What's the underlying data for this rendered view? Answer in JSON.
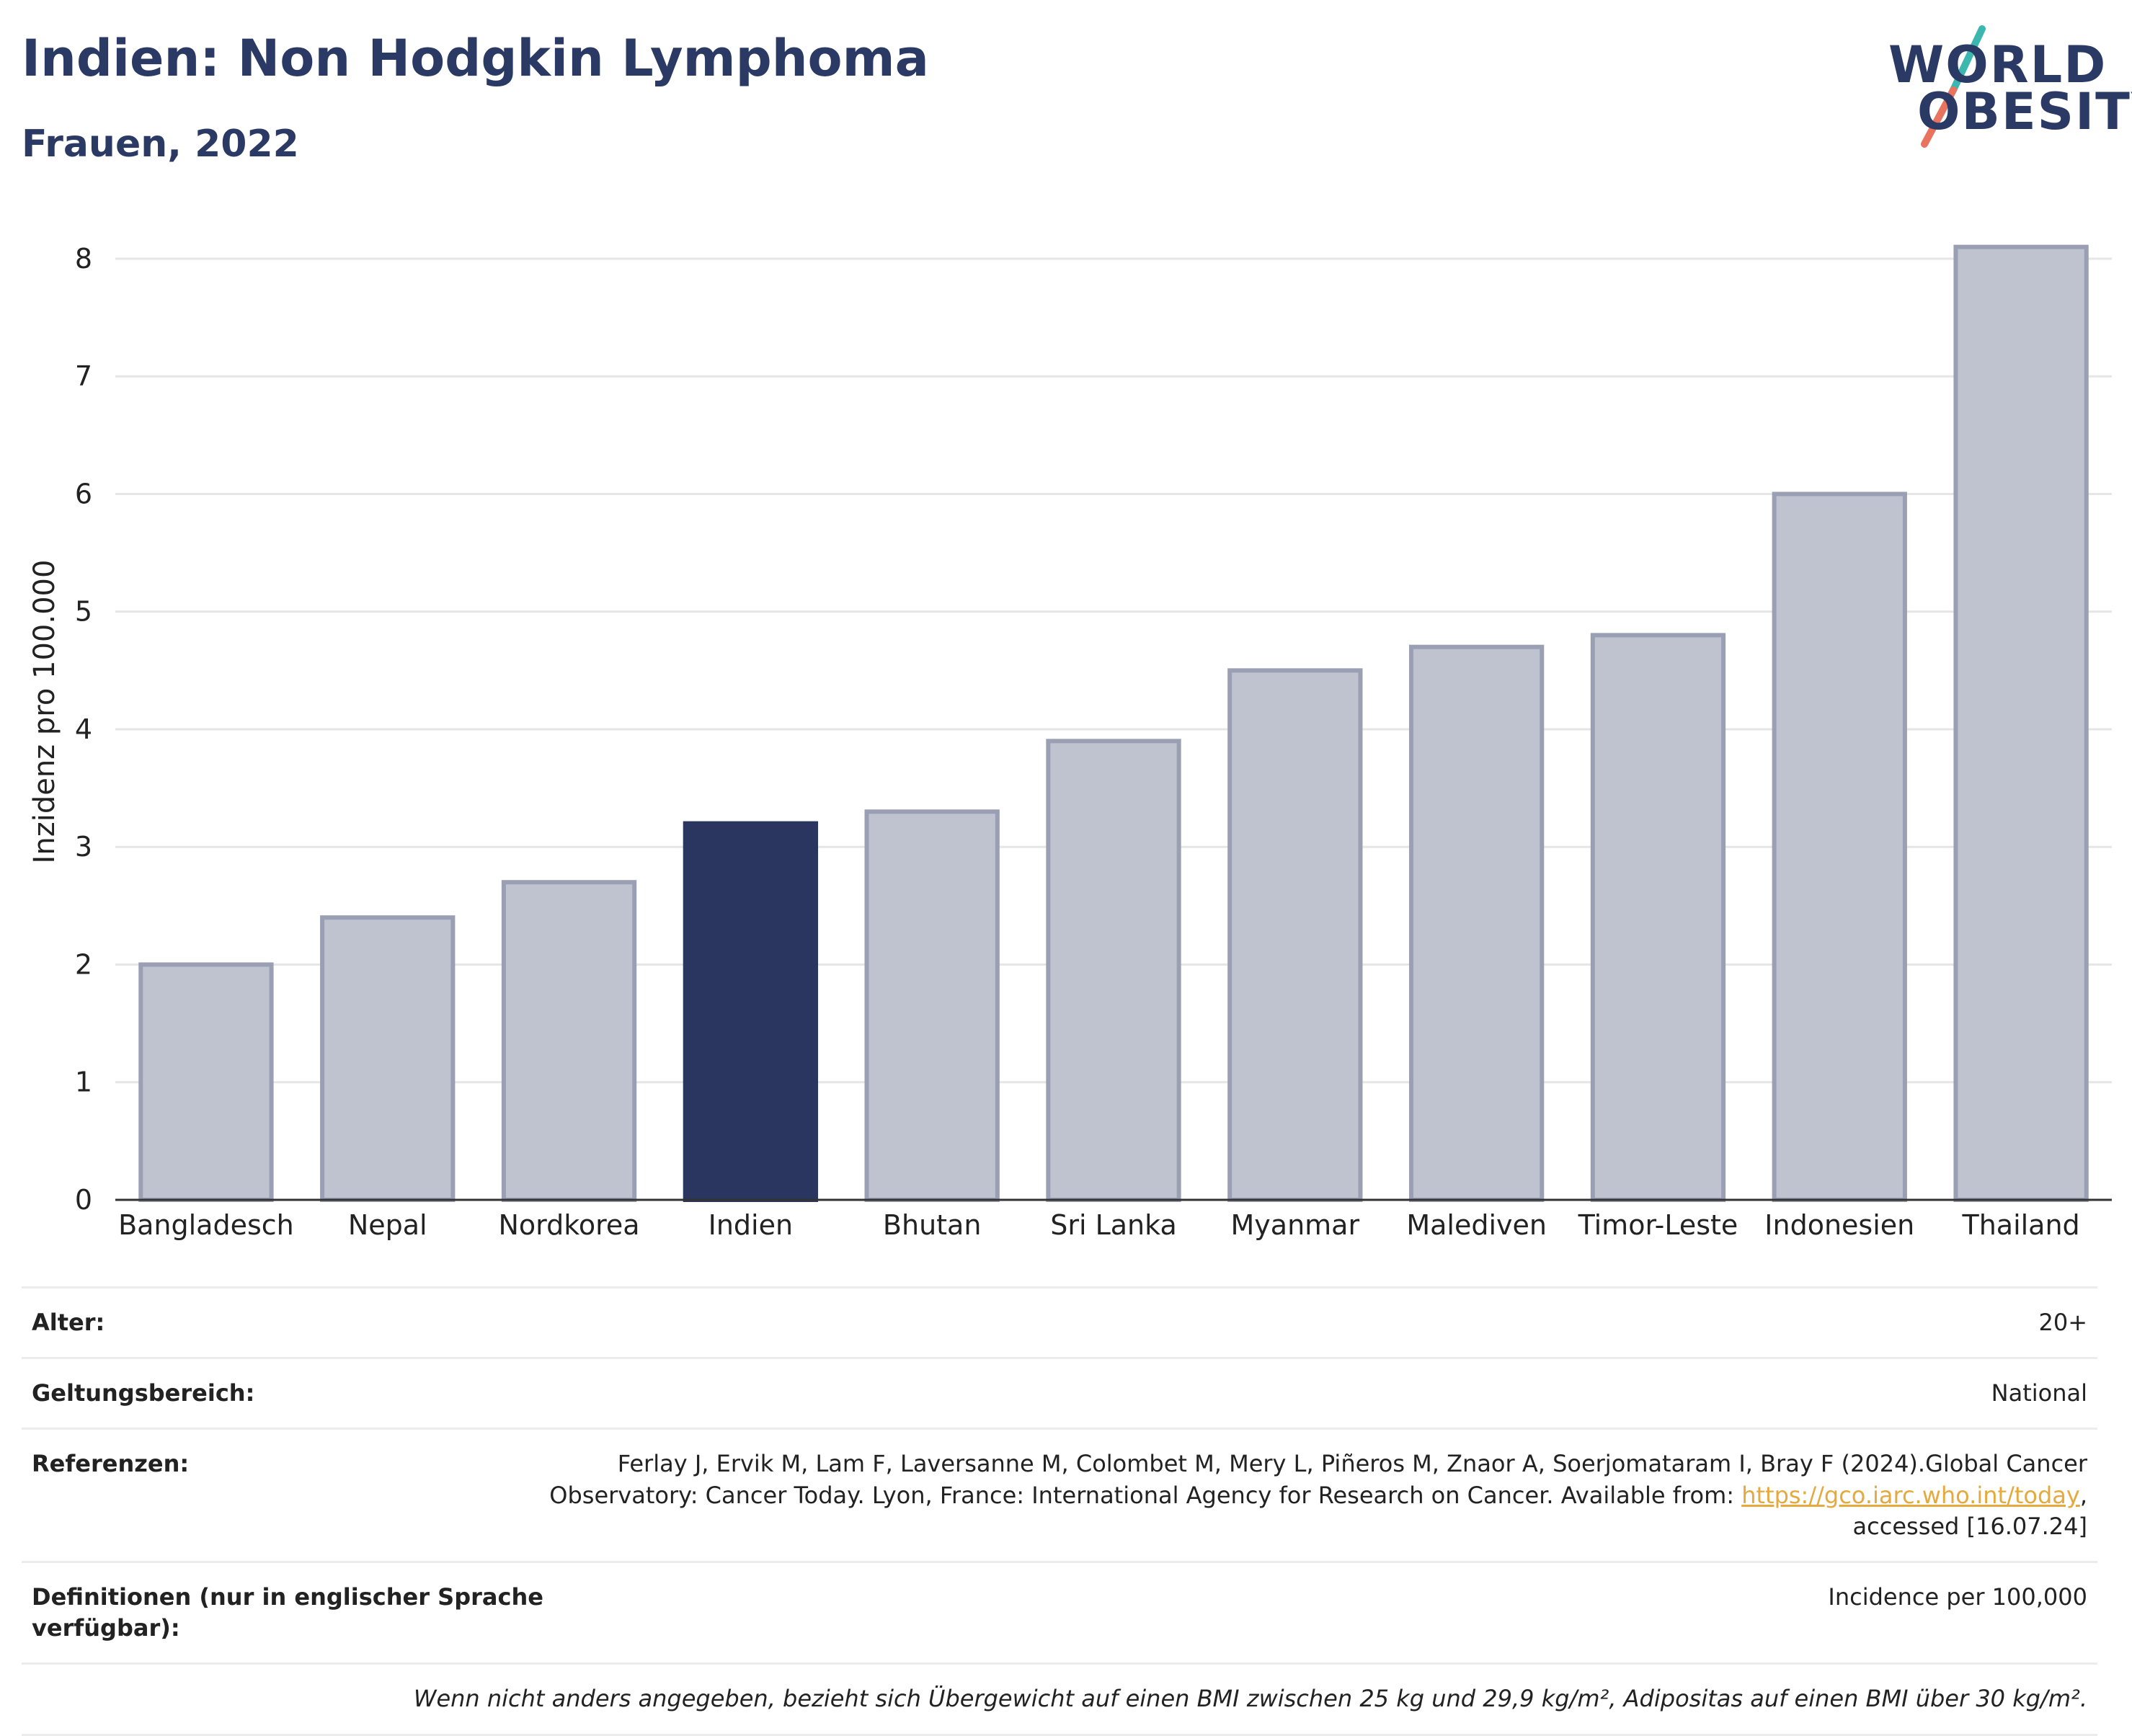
{
  "header": {
    "title": "Indien: Non Hodgkin Lymphoma",
    "subtitle": "Frauen, 2022"
  },
  "logo": {
    "line1": "WORLD",
    "line2": "OBESITY",
    "slash_colors": [
      "#3bb7b0",
      "#e8735f"
    ]
  },
  "colors": {
    "highlight_bar": "#2a3660",
    "other_bar_fill": "#bfc2cf",
    "other_bar_stroke": "#9a9fb3",
    "text_dark": "#2a3a64",
    "link": "#e6a93d"
  },
  "chart_data": {
    "type": "bar",
    "title": "Indien: Non Hodgkin Lymphoma",
    "subtitle": "Frauen, 2022",
    "xlabel": "",
    "ylabel": "Inzidenz pro 100.000",
    "ylim": [
      0,
      8.3
    ],
    "yticks": [
      0,
      1,
      2,
      3,
      4,
      5,
      6,
      7,
      8
    ],
    "grid": true,
    "highlight": "Indien",
    "categories": [
      "Bangladesch",
      "Nepal",
      "Nordkorea",
      "Indien",
      "Bhutan",
      "Sri Lanka",
      "Myanmar",
      "Malediven",
      "Timor-Leste",
      "Indonesien",
      "Thailand"
    ],
    "values": [
      2.0,
      2.4,
      2.7,
      3.2,
      3.3,
      3.9,
      4.5,
      4.7,
      4.8,
      6.0,
      8.1
    ]
  },
  "info": {
    "age_label": "Alter:",
    "age_value": "20+",
    "scope_label": "Geltungsbereich:",
    "scope_value": "National",
    "ref_label": "Referenzen:",
    "ref_text_before": "Ferlay J, Ervik M, Lam F, Laversanne M, Colombet M, Mery L, Piñeros M, Znaor A, Soerjomataram I, Bray F (2024).Global Cancer Observatory: Cancer Today. Lyon, France: International Agency for Research on Cancer. Available from: ",
    "ref_link": "https://gco.iarc.who.int/today",
    "ref_text_after": ", accessed [16.07.24]",
    "def_label": "Definitionen (nur in englischer Sprache verfügbar):",
    "def_value": "Incidence per 100,000",
    "note": "Wenn nicht anders angegeben, bezieht sich Übergewicht auf einen BMI zwischen 25 kg und 29,9 kg/m², Adipositas auf einen BMI über 30 kg/m²."
  }
}
